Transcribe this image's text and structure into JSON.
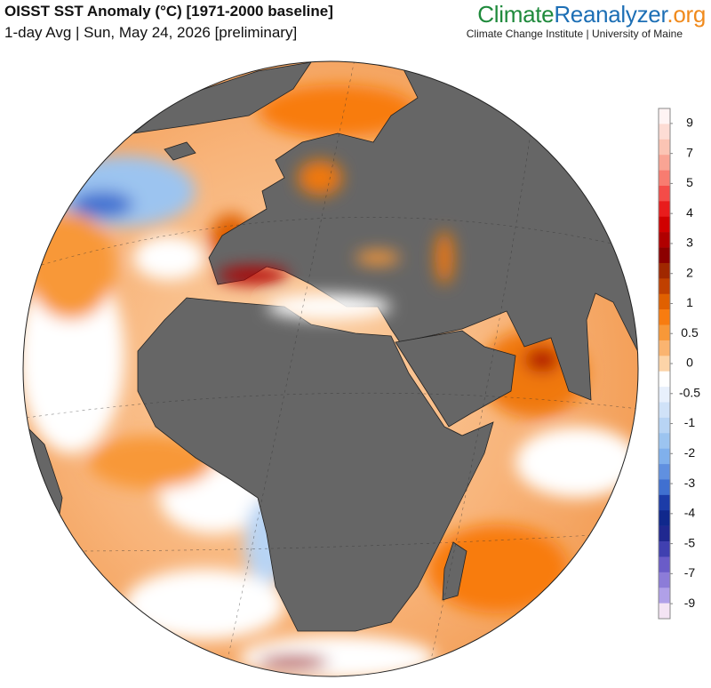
{
  "header": {
    "title": "OISST SST Anomaly (°C) [1971-2000 baseline]",
    "subtitle": "1-day Avg | Sun, May 24, 2026 [preliminary]"
  },
  "brand": {
    "parts": [
      "Climate",
      "Reanalyzer",
      ".org"
    ],
    "part_colors": [
      "#1f8a3c",
      "#1d6fb5",
      "#f08a1c"
    ],
    "tagline": "Climate Change Institute | University of Maine"
  },
  "colorbar": {
    "ticks": [
      9,
      7,
      5,
      4,
      3,
      2,
      1,
      0.5,
      0,
      -0.5,
      -1,
      -2,
      -3,
      -4,
      -5,
      -7,
      -9
    ],
    "colors": [
      "#fff4f4",
      "#fddcd4",
      "#fbc4b4",
      "#f9a494",
      "#f87c70",
      "#f44c48",
      "#e81c1c",
      "#d00000",
      "#b00000",
      "#8c0000",
      "#a02800",
      "#c04000",
      "#e06000",
      "#f87c10",
      "#f89838",
      "#fab470",
      "#fcd4a8",
      "#ffffff",
      "#e8f0fc",
      "#d0e2f8",
      "#b8d4f4",
      "#9cc4f0",
      "#80b0ec",
      "#6090e0",
      "#4070d0",
      "#1c3ca8",
      "#10288c",
      "#202890",
      "#4040b0",
      "#6a5cc8",
      "#8c7cd8",
      "#b0a0e8",
      "#f4e4f4"
    ]
  }
}
